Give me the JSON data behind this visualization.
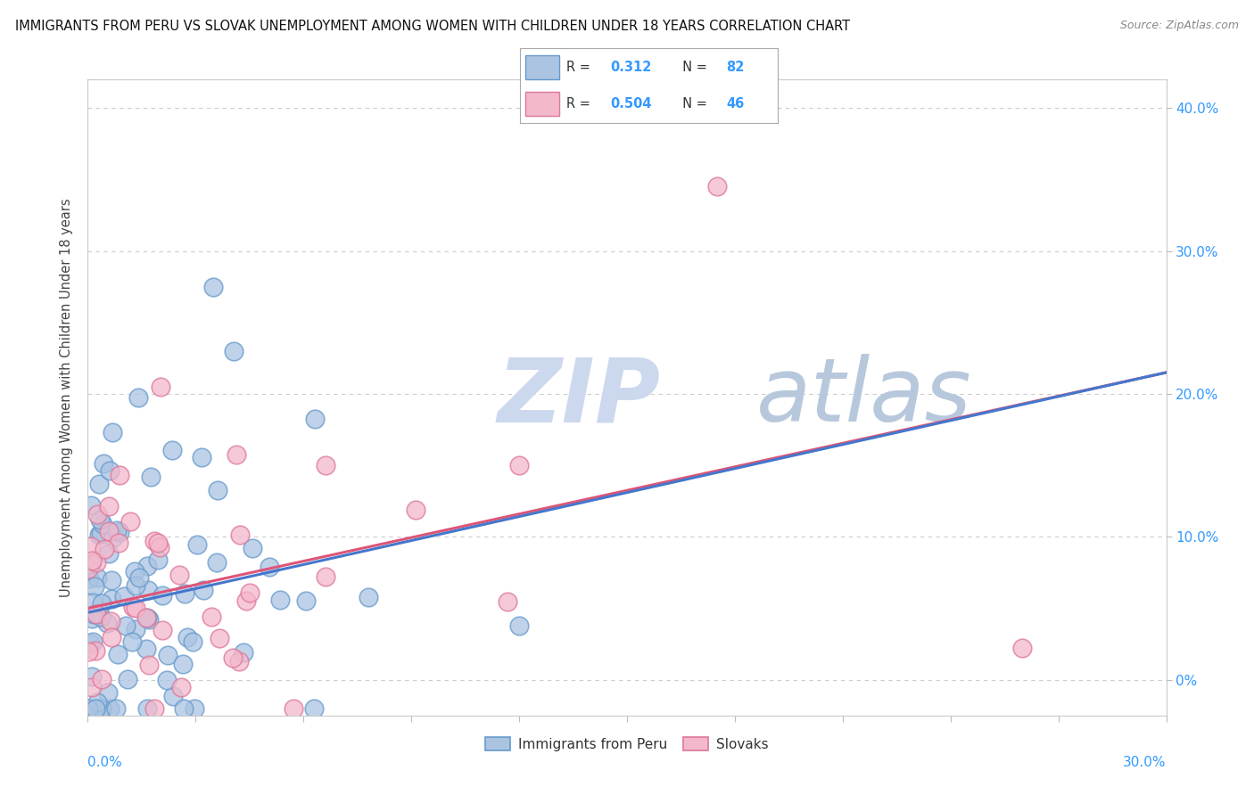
{
  "title": "IMMIGRANTS FROM PERU VS SLOVAK UNEMPLOYMENT AMONG WOMEN WITH CHILDREN UNDER 18 YEARS CORRELATION CHART",
  "source": "Source: ZipAtlas.com",
  "ylabel": "Unemployment Among Women with Children Under 18 years",
  "x_min": 0.0,
  "x_max": 0.3,
  "y_min": -0.025,
  "y_max": 0.42,
  "series1_label": "Immigrants from Peru",
  "series1_R": "0.312",
  "series1_N": "82",
  "series1_color": "#aac4e2",
  "series1_edge": "#6699cc",
  "series2_label": "Slovaks",
  "series2_R": "0.504",
  "series2_N": "46",
  "series2_color": "#f4b8cb",
  "series2_edge": "#dd7799",
  "trendline1_color": "#4477cc",
  "trendline2_color": "#dd5577",
  "watermark_zip": "ZIP",
  "watermark_atlas": "atlas",
  "watermark_color_zip": "#c8d8ee",
  "watermark_color_atlas": "#c0cce0",
  "legend_R_color": "#3399ff",
  "background_color": "#ffffff",
  "grid_color": "#cccccc",
  "right_tick_color": "#3399ff",
  "ytick_labels": [
    "0%",
    "10.0%",
    "20.0%",
    "30.0%",
    "40.0%"
  ],
  "ytick_vals": [
    0.0,
    0.1,
    0.2,
    0.3,
    0.4
  ],
  "trendline1_x0": 0.0,
  "trendline1_y0": 0.047,
  "trendline1_x1": 0.3,
  "trendline1_y1": 0.215,
  "trendline2_x0": 0.0,
  "trendline2_y0": 0.05,
  "trendline2_x1": 0.3,
  "trendline2_y1": 0.215,
  "seed1": 42,
  "seed2": 99
}
